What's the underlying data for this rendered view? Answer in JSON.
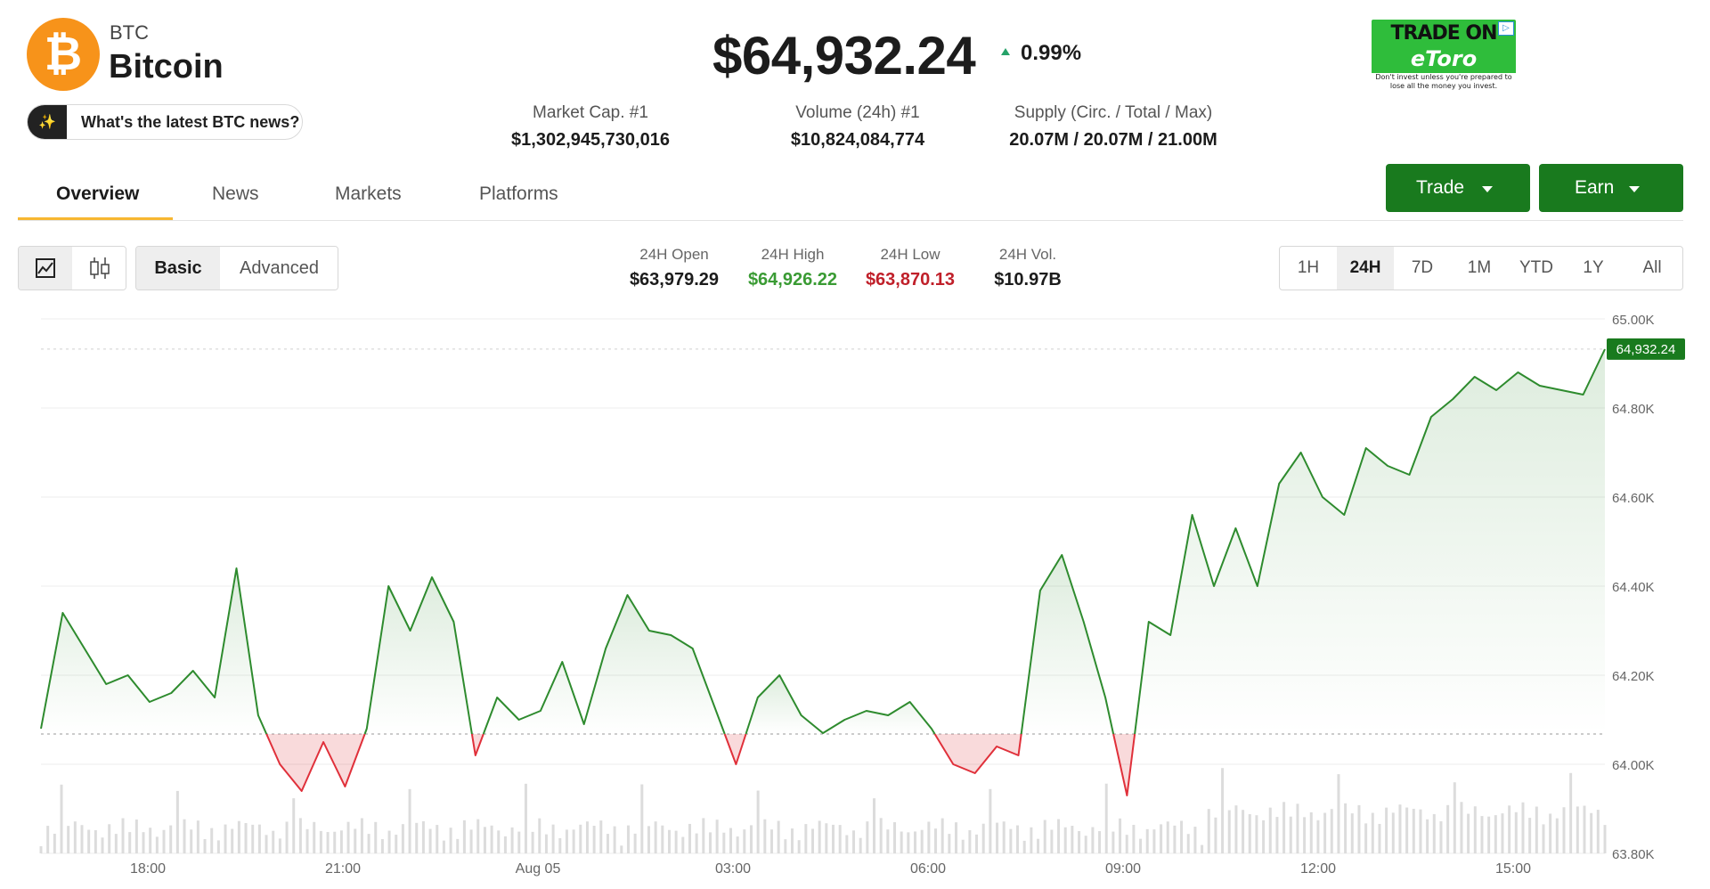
{
  "coin": {
    "logo_glyph": "₿",
    "symbol": "BTC",
    "name": "Bitcoin",
    "brand_color": "#f7931a"
  },
  "news_prompt": {
    "icon": "sparkle-icon",
    "label": "What's the latest BTC news?"
  },
  "price": {
    "current": "$64,932.24",
    "change": "0.99%",
    "direction": "up"
  },
  "stats": [
    {
      "label": "Market Cap. #1",
      "value": "$1,302,945,730,016"
    },
    {
      "label": "Volume (24h) #1",
      "value": "$10,824,084,774"
    },
    {
      "label": "Supply (Circ. / Total / Max)",
      "value": "20.07M / 20.07M / 21.00M"
    }
  ],
  "ad": {
    "line1": "TRADE ON",
    "line2": "eToro",
    "line3": "Don't invest unless you're prepared to lose all the money you invest."
  },
  "tabs": [
    {
      "label": "Overview",
      "active": true
    },
    {
      "label": "News"
    },
    {
      "label": "Markets"
    },
    {
      "label": "Platforms"
    }
  ],
  "actions": {
    "trade": "Trade",
    "earn": "Earn",
    "color": "#197a1e"
  },
  "chart_mode": {
    "icons": [
      "line-chart-icon",
      "candlestick-icon"
    ],
    "basic": "Basic",
    "advanced": "Advanced"
  },
  "ohlc": [
    {
      "label": "24H Open",
      "value": "$63,979.29",
      "color": "#1c1c1c"
    },
    {
      "label": "24H High",
      "value": "$64,926.22",
      "color": "#3a9b34"
    },
    {
      "label": "24H Low",
      "value": "$63,870.13",
      "color": "#c0202a"
    },
    {
      "label": "24H Vol.",
      "value": "$10.97B",
      "color": "#1c1c1c"
    }
  ],
  "ranges": [
    "1H",
    "24H",
    "7D",
    "1M",
    "YTD",
    "1Y",
    "All"
  ],
  "selected_range": "24H",
  "chart_data": {
    "type": "area",
    "title": "",
    "xlabel": "",
    "ylabel": "",
    "ylim": [
      63800,
      65000
    ],
    "yticks": [
      "65.00K",
      "64.80K",
      "64.60K",
      "64.40K",
      "64.20K",
      "64.00K",
      "63.80K"
    ],
    "xticks": [
      "18:00",
      "21:00",
      "Aug 05",
      "03:00",
      "06:00",
      "09:00",
      "12:00",
      "15:00"
    ],
    "baseline": 64068,
    "last_price_label": "64,932.24",
    "last_price": 64932.24,
    "up_color": "#2e8b2e",
    "down_color": "#e0303a",
    "x": [
      "16:10",
      "16:30",
      "16:50",
      "17:10",
      "17:30",
      "17:50",
      "18:10",
      "18:30",
      "18:50",
      "19:10",
      "19:30",
      "19:50",
      "20:10",
      "20:30",
      "20:50",
      "21:10",
      "21:30",
      "21:50",
      "22:10",
      "22:30",
      "22:50",
      "23:10",
      "23:30",
      "23:50",
      "00:10",
      "00:30",
      "00:50",
      "01:10",
      "01:30",
      "01:50",
      "02:10",
      "02:30",
      "02:50",
      "03:10",
      "03:30",
      "03:50",
      "04:10",
      "04:30",
      "04:50",
      "05:10",
      "05:30",
      "05:50",
      "06:10",
      "06:30",
      "06:50",
      "07:10",
      "07:30",
      "07:50",
      "08:10",
      "08:30",
      "08:50",
      "09:10",
      "09:30",
      "09:50",
      "10:10",
      "10:30",
      "10:50",
      "11:10",
      "11:30",
      "11:50",
      "12:10",
      "12:30",
      "12:50",
      "13:10",
      "13:30",
      "13:50",
      "14:10",
      "14:30",
      "14:50",
      "15:10",
      "15:30",
      "15:50",
      "16:05"
    ],
    "values": [
      64080,
      64340,
      64260,
      64180,
      64200,
      64140,
      64160,
      64210,
      64150,
      64440,
      64110,
      64000,
      63940,
      64050,
      63950,
      64080,
      64400,
      64300,
      64420,
      64320,
      64020,
      64150,
      64100,
      64120,
      64230,
      64090,
      64260,
      64380,
      64300,
      64290,
      64260,
      64130,
      64000,
      64150,
      64200,
      64110,
      64070,
      64100,
      64120,
      64110,
      64140,
      64080,
      64000,
      63980,
      64040,
      64020,
      64390,
      64470,
      64320,
      64150,
      63930,
      64320,
      64290,
      64560,
      64400,
      64530,
      64400,
      64630,
      64700,
      64600,
      64560,
      64710,
      64670,
      64650,
      64780,
      64820,
      64870,
      64840,
      64880,
      64850,
      64840,
      64830,
      64932
    ]
  }
}
